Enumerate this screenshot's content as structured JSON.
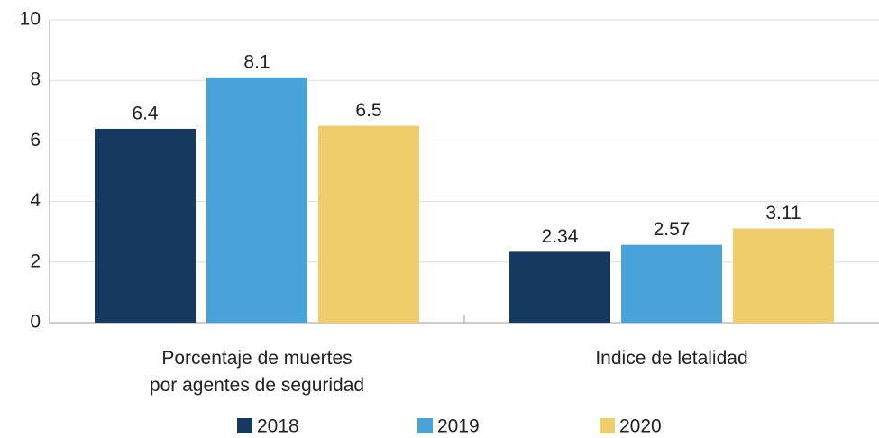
{
  "chart_data": {
    "type": "bar",
    "categories": [
      "Porcentaje de muertes\npor agentes de seguridad",
      "Indice de letalidad"
    ],
    "series": [
      {
        "name": "2018",
        "color": "#163a5f",
        "values": [
          6.4,
          2.34
        ]
      },
      {
        "name": "2019",
        "color": "#4aa3d8",
        "values": [
          8.1,
          2.57
        ]
      },
      {
        "name": "2020",
        "color": "#f0cd6b",
        "values": [
          6.5,
          3.11
        ]
      }
    ],
    "ylim": [
      0,
      10
    ],
    "yticks": [
      0,
      2,
      4,
      6,
      8,
      10
    ],
    "grid": true,
    "legend": "bottom"
  }
}
